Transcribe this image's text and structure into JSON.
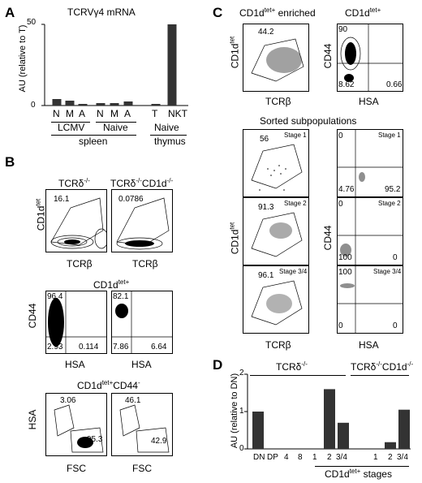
{
  "panel_labels": {
    "a": "A",
    "b": "B",
    "c": "C",
    "d": "D"
  },
  "panel_a": {
    "title": "TCRVγ4 mRNA",
    "ylabel": "AU (relative to T)",
    "yticks": [
      "50",
      "0"
    ],
    "bar_labels": [
      "N",
      "M",
      "A",
      "N",
      "M",
      "A",
      "T",
      "NKT"
    ],
    "group_labels": [
      "LCMV",
      "Naive",
      "Naive"
    ],
    "tissue_labels": [
      "spleen",
      "thymus"
    ]
  },
  "panel_b": {
    "row1": {
      "titles": [
        "TCRδ-/-",
        "TCRδ-/-CD1d-/-"
      ],
      "ylabel": "CD1dtet",
      "xlabel": "TCRβ",
      "values": [
        "16.1",
        "0.0786"
      ]
    },
    "row2": {
      "title": "CD1dtet+",
      "ylabel": "CD44",
      "xlabel": "HSA",
      "left_values": [
        "96.4",
        "2.93",
        "0.114"
      ],
      "right_values": [
        "82.1",
        "7.86",
        "6.64"
      ]
    },
    "row3": {
      "title": "CD1dtet+CD44-",
      "ylabel": "HSA",
      "xlabel": "FSC",
      "left_values": [
        "3.06",
        "95.3"
      ],
      "right_values": [
        "46.1",
        "42.9"
      ]
    }
  },
  "panel_c": {
    "title_left": "CD1dtet+ enriched",
    "title_right": "CD1dtet+",
    "top_left": {
      "ylabel": "CD1dtet",
      "xlabel": "TCRβ",
      "value": "44.2"
    },
    "top_right": {
      "ylabel": "CD44",
      "xlabel": "HSA",
      "values": [
        "90",
        "8.62",
        "0.66"
      ]
    },
    "sorted_title": "Sorted subpopulations",
    "stages": [
      "Stage 1",
      "Stage 2",
      "Stage 3/4"
    ],
    "left_values": [
      "56",
      "91.3",
      "96.1"
    ],
    "right_values": [
      {
        "tl": "0",
        "bl": "4.76",
        "br": "95.2"
      },
      {
        "tl": "0",
        "bl": "100",
        "br": "0"
      },
      {
        "tl": "100",
        "bl": "0",
        "br": "0"
      }
    ],
    "left_ylabel": "CD1dtet",
    "left_xlabel": "TCRβ",
    "right_ylabel": "CD44",
    "right_xlabel": "HSA"
  },
  "panel_d": {
    "ylabel": "AU (relative to DN)",
    "yticks": [
      "2",
      "1",
      "0"
    ],
    "group1": "TCRδ-/-",
    "group2": "TCRδ-/-CD1d-/-",
    "xlabel": "CD1dtet+ stages",
    "bar_labels": [
      "DN",
      "DP",
      "4",
      "8",
      "1",
      "2",
      "3/4",
      "1",
      "2",
      "3/4"
    ]
  },
  "chart_data": [
    {
      "type": "bar",
      "title": "TCRVγ4 mRNA",
      "ylabel": "AU (relative to T)",
      "categories": [
        "N",
        "M",
        "A",
        "N",
        "M",
        "A",
        "T",
        "NKT"
      ],
      "values": [
        4,
        3,
        1,
        1.5,
        1.5,
        2.5,
        1,
        50
      ],
      "ylim": [
        0,
        50
      ]
    },
    {
      "type": "bar",
      "ylabel": "AU (relative to DN)",
      "xlabel": "CD1dtet+ stages",
      "categories": [
        "DN",
        "DP",
        "4",
        "8",
        "1",
        "2",
        "3/4",
        "1",
        "2",
        "3/4"
      ],
      "values": [
        1.0,
        0.0,
        0.0,
        0.0,
        0.0,
        1.6,
        0.7,
        0.0,
        0.18,
        1.05
      ],
      "ylim": [
        0,
        2
      ]
    }
  ]
}
